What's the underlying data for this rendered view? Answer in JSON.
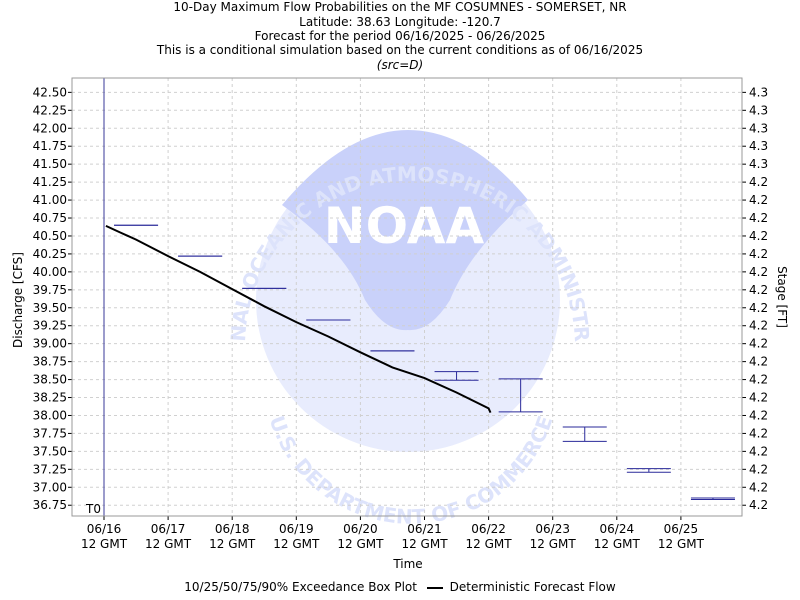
{
  "header": {
    "line1": "10-Day Maximum Flow Probabilities on the MF COSUMNES - SOMERSET, NR",
    "line2": "Latitude: 38.63 Longitude: -120.7",
    "line3": "Forecast for the period 06/16/2025 - 06/26/2025",
    "line4": "This is a conditional simulation based on the current conditions as of 06/16/2025",
    "line5": "(src=D)"
  },
  "watermark": {
    "logo_text": "NOAA",
    "ring_top": "NATIONAL OCEANIC AND ATMOSPHERIC ADMINISTRATION",
    "ring_bottom": "U.S. DEPARTMENT OF COMMERCE"
  },
  "legend": {
    "box_label": "10/25/50/75/90% Exceedance Box Plot",
    "line_label": "Deterministic Forecast Flow"
  },
  "chart_data": {
    "type": "box+line",
    "xlabel": "Time",
    "ylabel": "Discharge [CFS]",
    "y2label": "Stage [FT]",
    "ylim": [
      36.6,
      42.7
    ],
    "xlim": [
      0.0,
      10.5
    ],
    "t0_label": "T0",
    "t0_x": 0.0,
    "y_ticks": [
      42.5,
      42.25,
      42.0,
      41.75,
      41.5,
      41.25,
      41.0,
      40.75,
      40.5,
      40.25,
      40.0,
      39.75,
      39.5,
      39.25,
      39.0,
      38.75,
      38.5,
      38.25,
      38.0,
      37.75,
      37.5,
      37.25,
      37.0,
      36.75
    ],
    "y2_tick_labels": [
      "4.3",
      "4.3",
      "4.3",
      "4.3",
      "4.3",
      "4.2",
      "4.2",
      "4.2",
      "4.2",
      "4.2",
      "4.2",
      "4.2",
      "4.2",
      "4.2",
      "4.2",
      "4.2",
      "4.2",
      "4.2",
      "4.2",
      "4.2",
      "4.2",
      "4.2",
      "4.2",
      "4.2"
    ],
    "x_ticks": [
      {
        "x": 0.0,
        "line1": "06/16",
        "line2": "12 GMT"
      },
      {
        "x": 1.0,
        "line1": "06/17",
        "line2": "12 GMT"
      },
      {
        "x": 2.0,
        "line1": "06/18",
        "line2": "12 GMT"
      },
      {
        "x": 3.0,
        "line1": "06/19",
        "line2": "12 GMT"
      },
      {
        "x": 4.0,
        "line1": "06/20",
        "line2": "12 GMT"
      },
      {
        "x": 5.0,
        "line1": "06/21",
        "line2": "12 GMT"
      },
      {
        "x": 6.0,
        "line1": "06/22",
        "line2": "12 GMT"
      },
      {
        "x": 7.0,
        "line1": "06/23",
        "line2": "12 GMT"
      },
      {
        "x": 8.0,
        "line1": "06/24",
        "line2": "12 GMT"
      },
      {
        "x": 9.0,
        "line1": "06/25",
        "line2": "12 GMT"
      }
    ],
    "boxes": [
      {
        "x": 0.5,
        "p10": 40.65,
        "p25": 40.65,
        "p50": 40.65,
        "p75": 40.65,
        "p90": 40.65
      },
      {
        "x": 1.5,
        "p10": 40.22,
        "p25": 40.22,
        "p50": 40.22,
        "p75": 40.22,
        "p90": 40.22
      },
      {
        "x": 2.5,
        "p10": 39.77,
        "p25": 39.77,
        "p50": 39.77,
        "p75": 39.77,
        "p90": 39.77
      },
      {
        "x": 3.5,
        "p10": 39.33,
        "p25": 39.33,
        "p50": 39.33,
        "p75": 39.33,
        "p90": 39.33
      },
      {
        "x": 4.5,
        "p10": 38.9,
        "p25": 38.9,
        "p50": 38.9,
        "p75": 38.9,
        "p90": 38.9
      },
      {
        "x": 5.5,
        "p10": 38.49,
        "p25": 38.49,
        "p50": 38.61,
        "p75": 38.61,
        "p90": 38.61
      },
      {
        "x": 6.5,
        "p10": 38.05,
        "p25": 38.05,
        "p50": 38.51,
        "p75": 38.51,
        "p90": 38.51
      },
      {
        "x": 7.5,
        "p10": 37.64,
        "p25": 37.64,
        "p50": 37.84,
        "p75": 37.84,
        "p90": 37.84
      },
      {
        "x": 8.5,
        "p10": 37.21,
        "p25": 37.21,
        "p50": 37.26,
        "p75": 37.26,
        "p90": 37.26
      },
      {
        "x": 9.5,
        "p10": 36.83,
        "p25": 36.83,
        "p50": 36.85,
        "p75": 36.85,
        "p90": 36.85
      }
    ],
    "deterministic_line": {
      "x": [
        0.03,
        0.25,
        0.5,
        1.0,
        1.5,
        2.0,
        2.5,
        3.0,
        3.5,
        4.0,
        4.5,
        5.0,
        5.5,
        6.0,
        6.03
      ],
      "y": [
        40.64,
        40.55,
        40.45,
        40.22,
        40.0,
        39.76,
        39.52,
        39.3,
        39.1,
        38.88,
        38.67,
        38.52,
        38.32,
        38.1,
        38.04
      ]
    },
    "grid": true,
    "colors": {
      "box": "#2a2a9a",
      "line": "#000000",
      "t0_line": "#3a3a9a",
      "grid": "#d0d0d0",
      "watermark": "#dde3fb"
    }
  }
}
